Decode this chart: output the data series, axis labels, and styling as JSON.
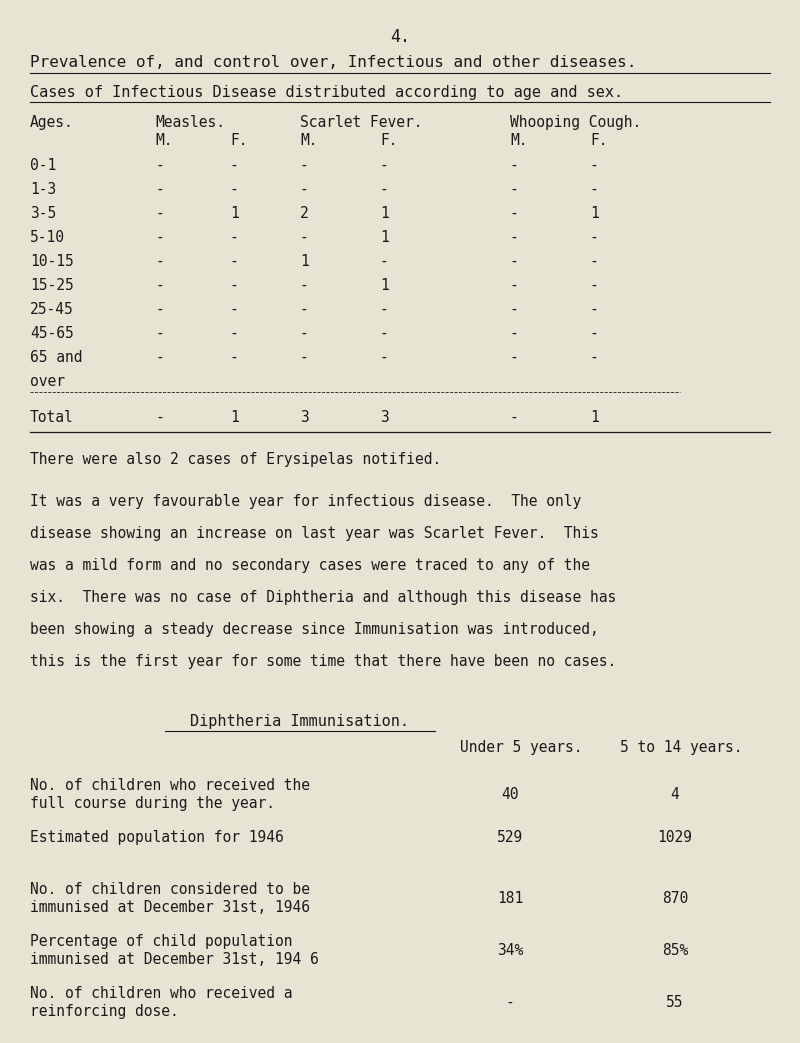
{
  "page_number": "4.",
  "title1": "Prevalence of, and control over, Infectious and other diseases.",
  "title2": "Cases of Infectious Disease distributed according to age and sex.",
  "bg_color": "#e8e4d4",
  "text_color": "#1a1a1a",
  "table_ages": [
    "0-1",
    "1-3",
    "3-5",
    "5-10",
    "10-15",
    "15-25",
    "25-45",
    "45-65",
    "65 and",
    "over"
  ],
  "table_data": [
    [
      "-",
      "-",
      "-",
      "-",
      "-",
      "-"
    ],
    [
      "-",
      "-",
      "-",
      "-",
      "-",
      "-"
    ],
    [
      "-",
      "1",
      "2",
      "1",
      "-",
      "1"
    ],
    [
      "-",
      "-",
      "-",
      "1",
      "-",
      "-"
    ],
    [
      "-",
      "-",
      "1",
      "-",
      "-",
      "-"
    ],
    [
      "-",
      "-",
      "-",
      "1",
      "-",
      "-"
    ],
    [
      "-",
      "-",
      "-",
      "-",
      "-",
      "-"
    ],
    [
      "-",
      "-",
      "-",
      "-",
      "-",
      "-"
    ],
    [
      "-",
      "-",
      "-",
      "-",
      "-",
      "-"
    ],
    [
      "",
      "",
      "",
      "",
      "",
      ""
    ]
  ],
  "table_total": [
    "-",
    "1",
    "3",
    "3",
    "-",
    "1"
  ],
  "erysipelas_note": "There were also 2 cases of Erysipelas notified.",
  "para_lines": [
    "It was a very favourable year for infectious disease.  The only",
    "disease showing an increase on last year was Scarlet Fever.  This",
    "was a mild form and no secondary cases were traced to any of the",
    "six.  There was no case of Diphtheria and although this disease has",
    "been showing a steady decrease since Immunisation was introduced,",
    "this is the first year for some time that there have been no cases."
  ],
  "dipth_title": "Diphtheria Immunisation.",
  "dipth_col1": "Under 5 years.",
  "dipth_col2": "5 to 14 years.",
  "dipth_rows": [
    {
      "label1": "No. of children who received the",
      "label2": "full course during the year.",
      "val1": "40",
      "val2": "4"
    },
    {
      "label1": "Estimated population for 1946",
      "label2": "",
      "val1": "529",
      "val2": "1029"
    },
    {
      "label1": "No. of children considered to be",
      "label2": "immunised at December 31st, 1946",
      "val1": "181",
      "val2": "870"
    },
    {
      "label1": "Percentage of child population",
      "label2": "immunised at December 31st, 194 6",
      "val1": "34%",
      "val2": "85%"
    },
    {
      "label1": "No. of children who received a",
      "label2": "reinforcing dose.",
      "val1": "-",
      "val2": "55"
    }
  ]
}
